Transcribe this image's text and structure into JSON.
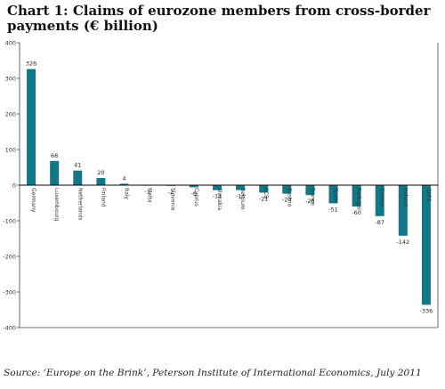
{
  "chart_title_prefix": "Chart 1:",
  "chart_title_text": "Claims of eurozone members from cross-border payments (€ billion)",
  "source_text": "Source: ‘Europe on the Brink’, Peterson Institute of International Economics, July 2011",
  "colors": {
    "bar": "#13778a",
    "axis": "#000000",
    "frame": "#444444"
  },
  "chart_data": {
    "type": "bar",
    "title": "Claims of eurozone members from cross-border payments (€ billion)",
    "categories": [
      "Germany",
      "Luxembourg",
      "Netherlands",
      "Finland",
      "Italy",
      "Malta",
      "Slovenia",
      "Cyprus",
      "Slovakia",
      "Belgium",
      "ECB",
      "Austria",
      "France",
      "Spain",
      "Portugal",
      "Greece",
      "Ireland",
      "GIIPS"
    ],
    "values": [
      326,
      68,
      41,
      20,
      4,
      -1,
      -2,
      -6,
      -14,
      -14,
      -21,
      -24,
      -28,
      -51,
      -60,
      -87,
      -142,
      -336
    ],
    "data_labels": [
      "326",
      "68",
      "41",
      "20",
      "4",
      "-1",
      "-2",
      "-6",
      "-14",
      "-14",
      "-21",
      "-24",
      "-28",
      "-51",
      "-60",
      "-87",
      "-142",
      "-336"
    ],
    "yticks": [
      400,
      300,
      200,
      100,
      0,
      -100,
      -200,
      -300,
      -400
    ],
    "ylim": [
      -400,
      400
    ],
    "xlabel": "",
    "ylabel": "",
    "grid": false,
    "legend": "none"
  }
}
